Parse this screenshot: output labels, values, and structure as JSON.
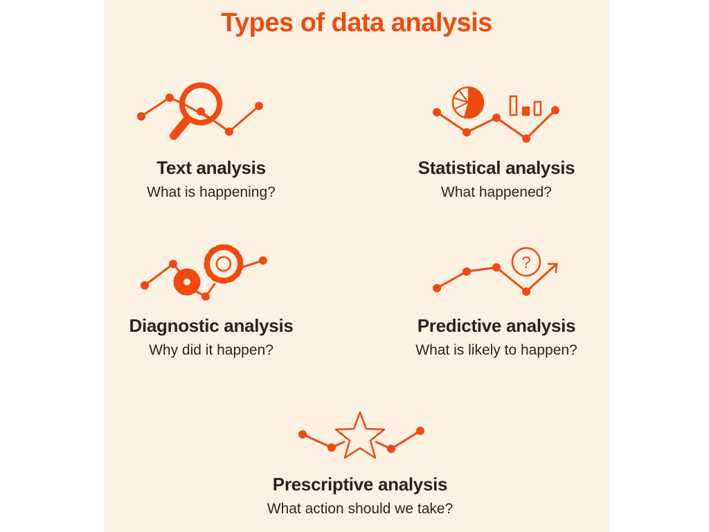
{
  "title": "Types of data analysis",
  "colors": {
    "background": "#fdf1e3",
    "accent": "#f04a0f",
    "text": "#2a2420"
  },
  "types": [
    {
      "name": "Text analysis",
      "question": "What is happening?",
      "icon": "magnifier-line-chart-icon"
    },
    {
      "name": "Statistical analysis",
      "question": "What happened?",
      "icon": "pie-bar-chart-icon"
    },
    {
      "name": "Diagnostic analysis",
      "question": "Why did it happen?",
      "icon": "gears-line-chart-icon"
    },
    {
      "name": "Predictive analysis",
      "question": "What is likely to happen?",
      "icon": "question-trend-arrow-icon"
    },
    {
      "name": "Prescriptive analysis",
      "question": "What action should we take?",
      "icon": "star-line-chart-icon"
    }
  ]
}
